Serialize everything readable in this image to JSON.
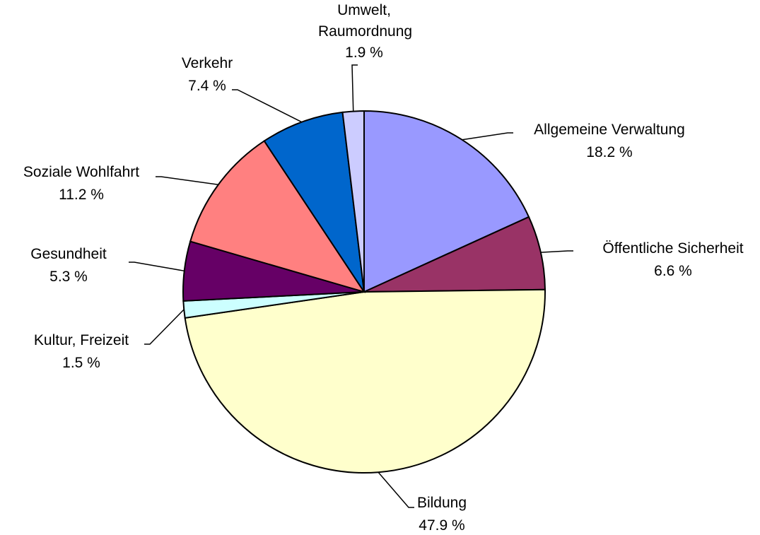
{
  "chart_data": {
    "type": "pie",
    "categories": [
      "Allgemeine Verwaltung",
      "Öffentliche Sicherheit",
      "Bildung",
      "Kultur, Freizeit",
      "Gesundheit",
      "Soziale Wohlfahrt",
      "Verkehr",
      "Umwelt, Raumordnung"
    ],
    "values": [
      18.2,
      6.6,
      47.9,
      1.5,
      5.3,
      11.2,
      7.4,
      1.9
    ],
    "value_labels": [
      "18.2 %",
      "6.6 %",
      "47.9 %",
      "1.5 %",
      "5.3 %",
      "11.2 %",
      "7.4 %",
      "1.9 %"
    ],
    "colors": [
      "#9999ff",
      "#993366",
      "#ffffcc",
      "#ccffff",
      "#660066",
      "#ff8080",
      "#0066cc",
      "#ccccff"
    ]
  }
}
